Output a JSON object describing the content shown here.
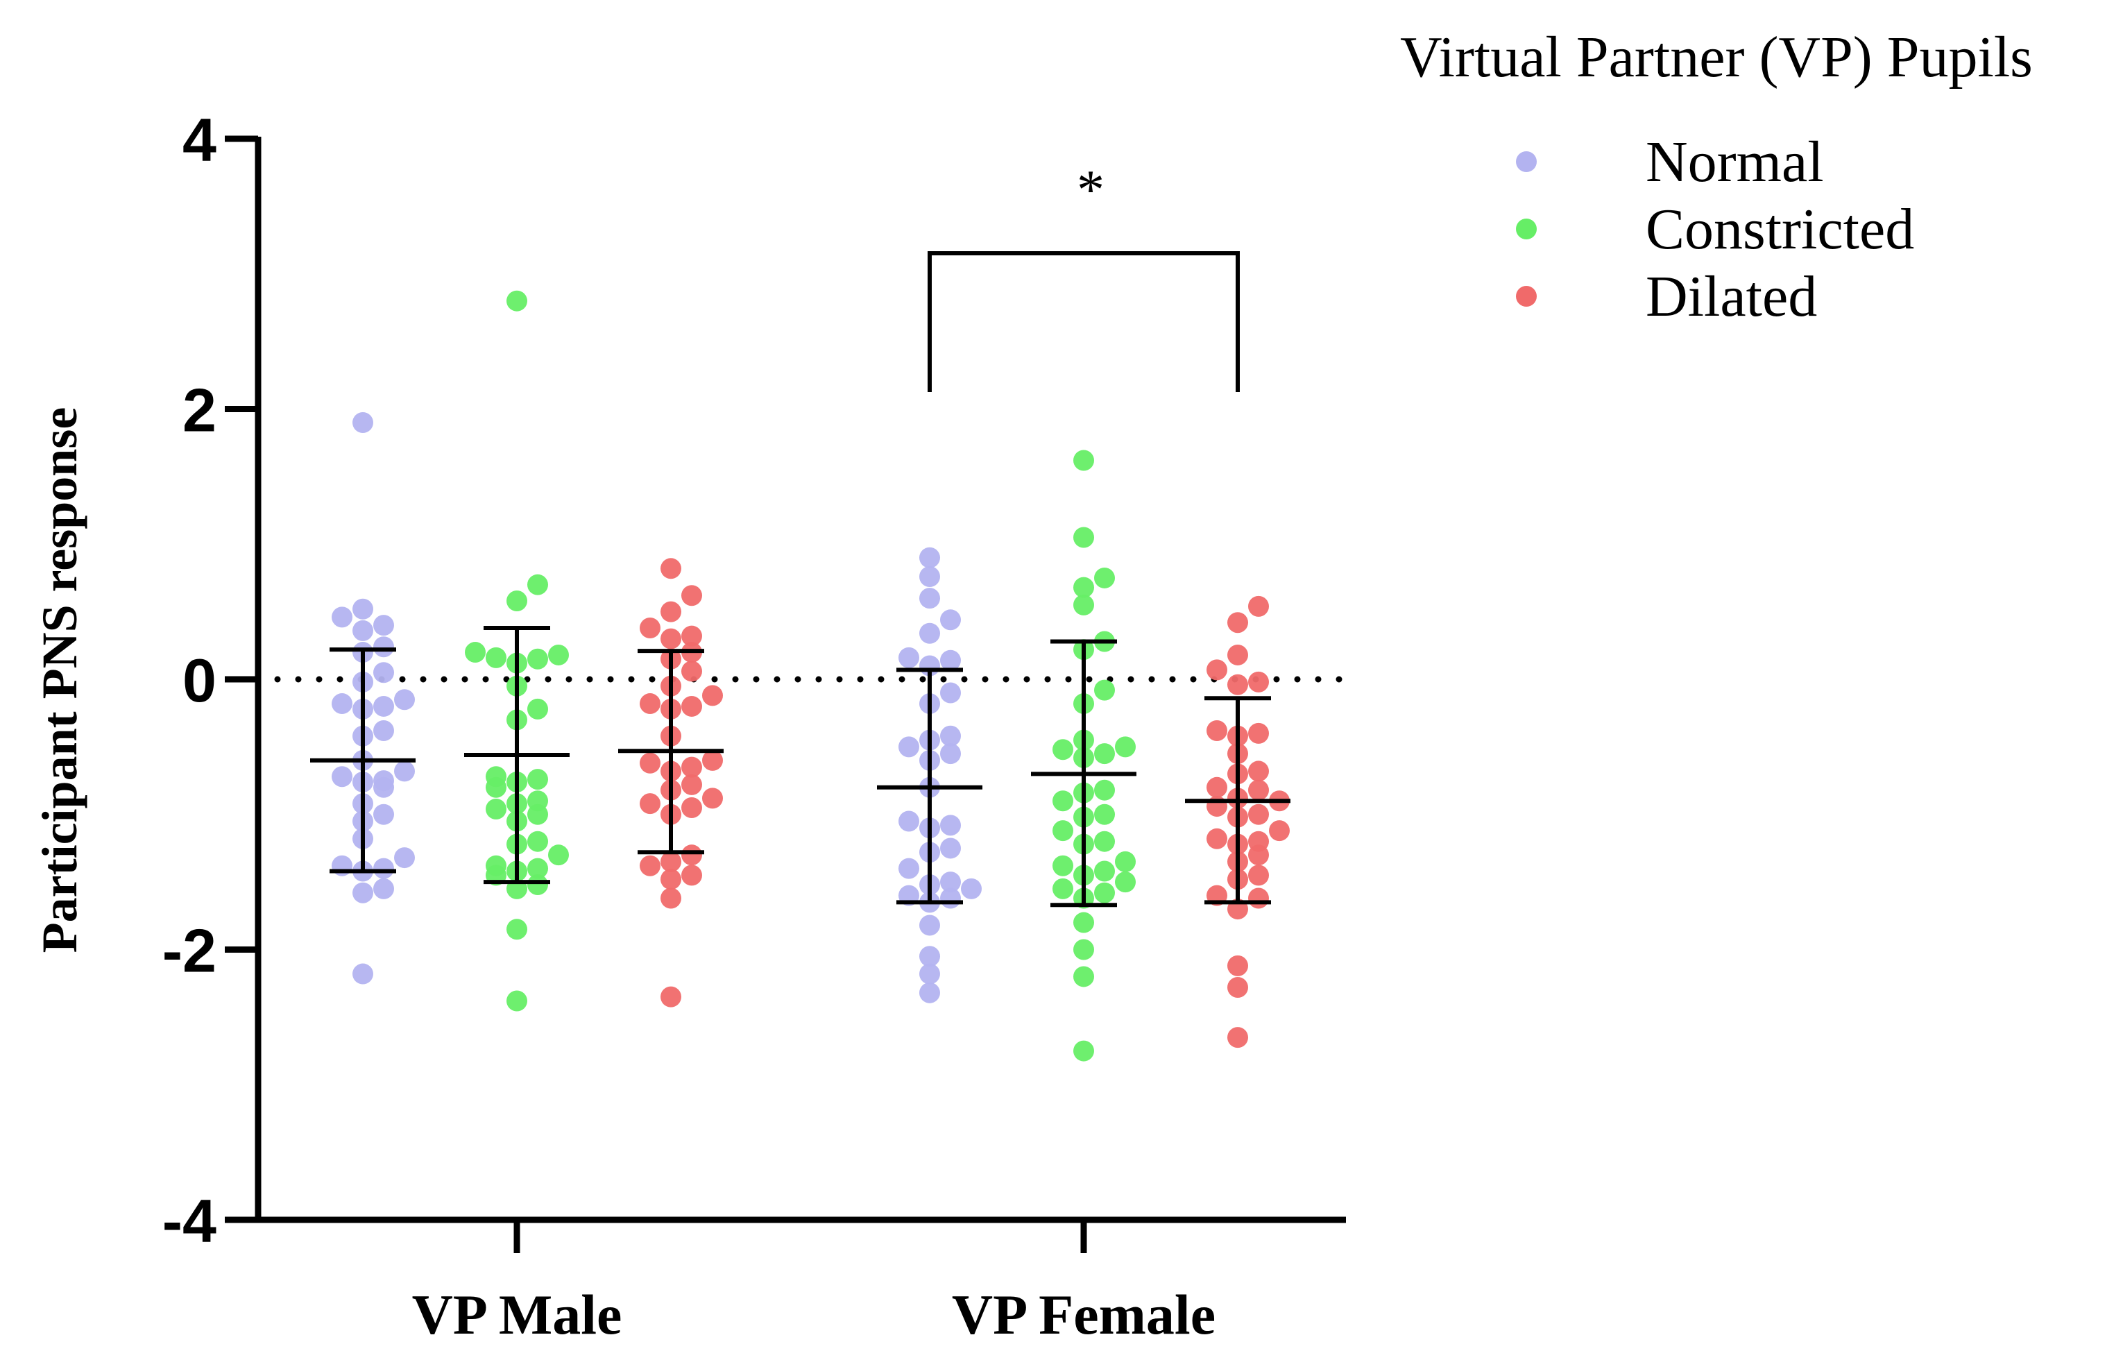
{
  "chart_data": {
    "type": "scatter",
    "ylabel": "Participant PNS response",
    "ylim": [
      -4,
      4
    ],
    "yticks": [
      4,
      2,
      0,
      -2,
      -4
    ],
    "ytick_labels": [
      "4",
      "2",
      "0",
      "-2",
      "-4"
    ],
    "categories": [
      "VP Male",
      "VP Female"
    ],
    "reference_line": 0,
    "legend": {
      "title": "Virtual Partner (VP) Pupils",
      "position": "top-right",
      "entries": [
        "Normal",
        "Constricted",
        "Dilated"
      ]
    },
    "series": [
      {
        "name": "Normal",
        "color": "#b3b3f0",
        "groups": [
          {
            "category": "VP Male",
            "mean": -0.6,
            "sd_low": -1.42,
            "sd_high": 0.22,
            "points": [
              1.9,
              0.52,
              0.46,
              0.4,
              0.36,
              0.24,
              0.2,
              0.05,
              -0.02,
              -0.15,
              -0.18,
              -0.2,
              -0.22,
              -0.38,
              -0.42,
              -0.6,
              -0.68,
              -0.72,
              -0.75,
              -0.76,
              -0.8,
              -0.92,
              -1.0,
              -1.05,
              -1.18,
              -1.32,
              -1.38,
              -1.4,
              -1.42,
              -1.55,
              -1.58,
              -2.18
            ]
          },
          {
            "category": "VP Female",
            "mean": -0.8,
            "sd_low": -1.65,
            "sd_high": 0.07,
            "points": [
              0.9,
              0.76,
              0.6,
              0.44,
              0.34,
              0.16,
              0.14,
              0.1,
              -0.1,
              -0.18,
              -0.42,
              -0.45,
              -0.5,
              -0.55,
              -0.6,
              -0.8,
              -1.05,
              -1.08,
              -1.1,
              -1.25,
              -1.28,
              -1.4,
              -1.5,
              -1.52,
              -1.55,
              -1.6,
              -1.62,
              -1.65,
              -1.82,
              -2.05,
              -2.18,
              -2.32
            ]
          }
        ]
      },
      {
        "name": "Constricted",
        "color": "#66ee66",
        "groups": [
          {
            "category": "VP Male",
            "mean": -0.56,
            "sd_low": -1.5,
            "sd_high": 0.38,
            "points": [
              2.8,
              0.7,
              0.58,
              0.2,
              0.18,
              0.16,
              0.15,
              0.12,
              -0.05,
              -0.22,
              -0.3,
              -0.72,
              -0.74,
              -0.76,
              -0.8,
              -0.9,
              -0.92,
              -0.96,
              -1.0,
              -1.05,
              -1.2,
              -1.22,
              -1.3,
              -1.38,
              -1.4,
              -1.42,
              -1.45,
              -1.52,
              -1.55,
              -1.85,
              -2.38
            ]
          },
          {
            "category": "VP Female",
            "mean": -0.7,
            "sd_low": -1.67,
            "sd_high": 0.28,
            "points": [
              1.62,
              1.05,
              0.75,
              0.68,
              0.55,
              0.28,
              0.22,
              -0.08,
              -0.18,
              -0.45,
              -0.5,
              -0.52,
              -0.55,
              -0.58,
              -0.82,
              -0.84,
              -0.9,
              -1.0,
              -1.02,
              -1.12,
              -1.2,
              -1.22,
              -1.35,
              -1.38,
              -1.42,
              -1.45,
              -1.5,
              -1.55,
              -1.58,
              -1.62,
              -1.8,
              -2.0,
              -2.2,
              -2.75
            ]
          }
        ]
      },
      {
        "name": "Dilated",
        "color": "#f06a6a",
        "groups": [
          {
            "category": "VP Male",
            "mean": -0.53,
            "sd_low": -1.28,
            "sd_high": 0.21,
            "points": [
              0.82,
              0.62,
              0.5,
              0.38,
              0.32,
              0.3,
              0.2,
              0.15,
              0.06,
              -0.05,
              -0.12,
              -0.18,
              -0.2,
              -0.22,
              -0.42,
              -0.6,
              -0.62,
              -0.65,
              -0.68,
              -0.78,
              -0.82,
              -0.88,
              -0.92,
              -0.95,
              -1.0,
              -1.3,
              -1.35,
              -1.38,
              -1.45,
              -1.48,
              -1.62,
              -2.35
            ]
          },
          {
            "category": "VP Female",
            "mean": -0.9,
            "sd_low": -1.65,
            "sd_high": -0.14,
            "points": [
              0.54,
              0.42,
              0.18,
              0.07,
              -0.02,
              -0.04,
              -0.38,
              -0.4,
              -0.42,
              -0.55,
              -0.68,
              -0.7,
              -0.8,
              -0.82,
              -0.88,
              -0.9,
              -0.94,
              -1.0,
              -1.02,
              -1.12,
              -1.18,
              -1.2,
              -1.22,
              -1.3,
              -1.35,
              -1.45,
              -1.48,
              -1.6,
              -1.62,
              -1.7,
              -2.12,
              -2.28,
              -2.65
            ]
          }
        ]
      }
    ],
    "annotations": [
      {
        "text": "*",
        "type": "significance-bracket",
        "category": "VP Female",
        "between": [
          "Normal",
          "Dilated"
        ]
      }
    ]
  }
}
